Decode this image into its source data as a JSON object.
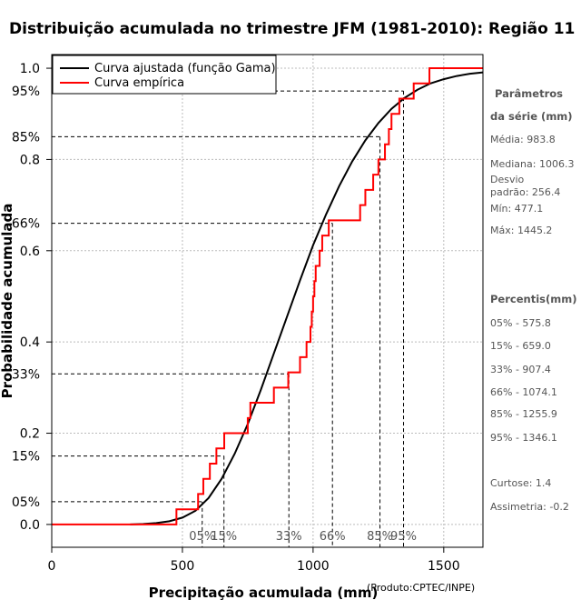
{
  "chart_data": {
    "type": "line",
    "title": "Distribuição acumulada no trimestre JFM (1981-2010): Região 11",
    "xlabel": "Precipitação acumulada (mm)",
    "ylabel": "Probabilidade acumulada",
    "credit": "(Produto:CPTEC/INPE)",
    "xlim": [
      0,
      1650
    ],
    "ylim": [
      -0.05,
      1.03
    ],
    "x_ticks": [
      0,
      500,
      1000,
      1500
    ],
    "y_ticks": [
      {
        "value": 0.0,
        "label": "0.0"
      },
      {
        "value": 0.2,
        "label": "0.2"
      },
      {
        "value": 0.4,
        "label": "0.4"
      },
      {
        "value": 0.6,
        "label": "0.6"
      },
      {
        "value": 0.8,
        "label": "0.8"
      },
      {
        "value": 1.0,
        "label": "1.0"
      }
    ],
    "legend": {
      "position": "top-left",
      "entries": [
        {
          "label": "Curva ajustada (função Gama)",
          "color": "#000000"
        },
        {
          "label": "Curva empírica",
          "color": "#ff0000"
        }
      ]
    },
    "series": [
      {
        "name": "Curva ajustada (função Gama)",
        "color": "#000000",
        "x": [
          300,
          350,
          400,
          450,
          500,
          550,
          600,
          650,
          700,
          750,
          800,
          850,
          900,
          950,
          1000,
          1050,
          1100,
          1150,
          1200,
          1250,
          1300,
          1350,
          1400,
          1450,
          1500,
          1550,
          1600,
          1650
        ],
        "y": [
          0.0,
          0.001,
          0.003,
          0.007,
          0.015,
          0.03,
          0.058,
          0.1,
          0.155,
          0.22,
          0.295,
          0.375,
          0.455,
          0.535,
          0.612,
          0.68,
          0.742,
          0.796,
          0.842,
          0.88,
          0.911,
          0.935,
          0.953,
          0.967,
          0.976,
          0.983,
          0.988,
          0.991
        ]
      },
      {
        "name": "Curva empírica",
        "color": "#ff0000",
        "x": [
          477.1,
          560,
          580,
          605,
          630,
          660,
          675,
          750,
          760,
          800,
          850,
          905,
          910,
          950,
          975,
          990,
          995,
          1000,
          1005,
          1010,
          1025,
          1035,
          1050,
          1060,
          1090,
          1180,
          1200,
          1230,
          1250,
          1275,
          1290,
          1300,
          1330,
          1385,
          1445.2
        ],
        "y": [
          0.0333,
          0.0667,
          0.1,
          0.1333,
          0.1667,
          0.2,
          0.2,
          0.2333,
          0.2667,
          0.2667,
          0.3,
          0.3333,
          0.3333,
          0.3667,
          0.4,
          0.4333,
          0.4667,
          0.5,
          0.5333,
          0.5667,
          0.6,
          0.6333,
          0.6333,
          0.6667,
          0.6667,
          0.7,
          0.7333,
          0.7667,
          0.8,
          0.8333,
          0.8667,
          0.9,
          0.9333,
          0.9667,
          1.0
        ]
      }
    ],
    "percentiles": [
      {
        "label": "05%",
        "p": 0.05,
        "value": 575.8
      },
      {
        "label": "15%",
        "p": 0.15,
        "value": 659.0
      },
      {
        "label": "33%",
        "p": 0.33,
        "value": 907.4
      },
      {
        "label": "66%",
        "p": 0.66,
        "value": 1074.1
      },
      {
        "label": "85%",
        "p": 0.85,
        "value": 1255.9
      },
      {
        "label": "95%",
        "p": 0.95,
        "value": 1346.1
      }
    ],
    "side_panel": {
      "params_heading_1": "Parâmetros",
      "params_heading_2": "da série (mm)",
      "media": "Média: 983.8",
      "mediana": "Mediana: 1006.3",
      "desvio_1": "Desvio",
      "desvio_2": "padrão: 256.4",
      "min": "Mín: 477.1",
      "max": "Máx: 1445.2",
      "percentis_heading": "Percentis(mm)",
      "p05": "05% - 575.8",
      "p15": "15% - 659.0",
      "p33": "33% - 907.4",
      "p66": "66% - 1074.1",
      "p85": "85% - 1255.9",
      "p95": "95% - 1346.1",
      "curtose": "Curtose: 1.4",
      "assimetria": "Assimetria: -0.2"
    }
  }
}
